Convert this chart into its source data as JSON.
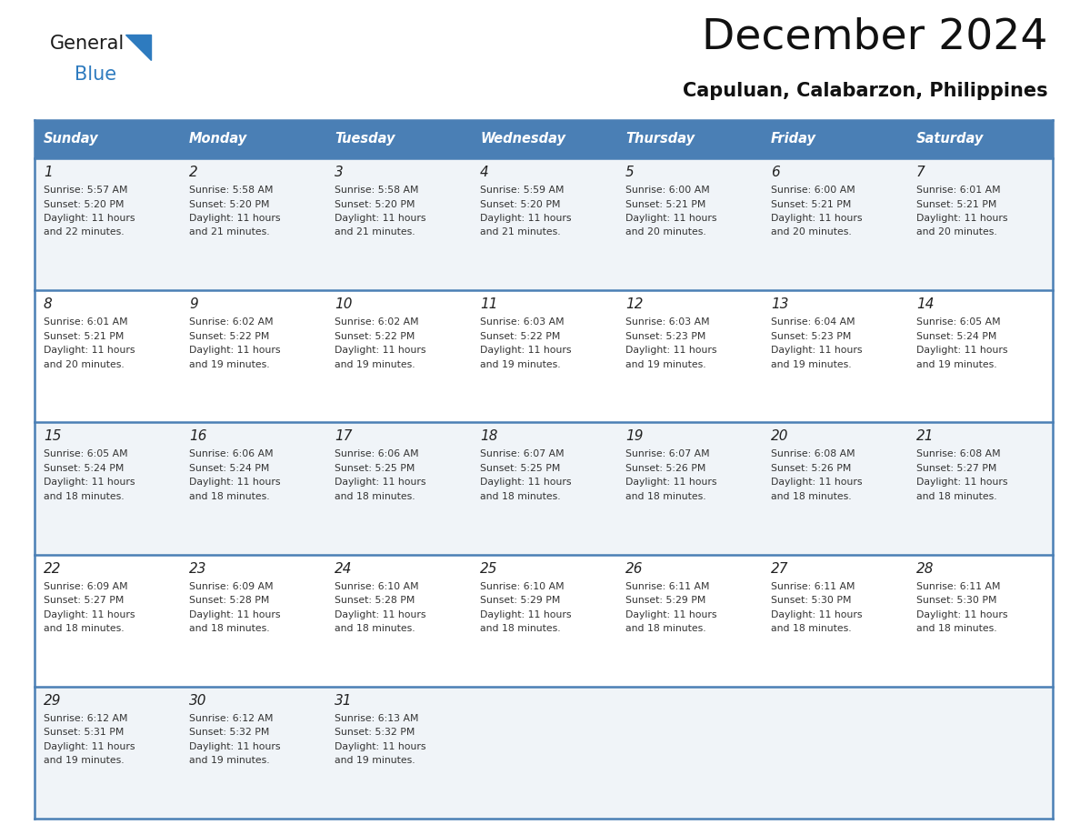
{
  "title": "December 2024",
  "subtitle": "Capuluan, Calabarzon, Philippines",
  "days_of_week": [
    "Sunday",
    "Monday",
    "Tuesday",
    "Wednesday",
    "Thursday",
    "Friday",
    "Saturday"
  ],
  "header_bg": "#4a7fb5",
  "header_text": "#ffffff",
  "row_bg_light": "#f0f4f8",
  "row_bg_white": "#ffffff",
  "border_color": "#4a7fb5",
  "day_number_color": "#222222",
  "cell_text_color": "#333333",
  "logo_general_color": "#1a1a1a",
  "logo_blue_color": "#2e7bbf",
  "logo_triangle_color": "#2e7bbf",
  "calendar_data": [
    [
      {
        "day": "1",
        "sunrise": "5:57 AM",
        "sunset": "5:20 PM",
        "daylight_h": "11 hours",
        "daylight_m": "and 22 minutes."
      },
      {
        "day": "2",
        "sunrise": "5:58 AM",
        "sunset": "5:20 PM",
        "daylight_h": "11 hours",
        "daylight_m": "and 21 minutes."
      },
      {
        "day": "3",
        "sunrise": "5:58 AM",
        "sunset": "5:20 PM",
        "daylight_h": "11 hours",
        "daylight_m": "and 21 minutes."
      },
      {
        "day": "4",
        "sunrise": "5:59 AM",
        "sunset": "5:20 PM",
        "daylight_h": "11 hours",
        "daylight_m": "and 21 minutes."
      },
      {
        "day": "5",
        "sunrise": "6:00 AM",
        "sunset": "5:21 PM",
        "daylight_h": "11 hours",
        "daylight_m": "and 20 minutes."
      },
      {
        "day": "6",
        "sunrise": "6:00 AM",
        "sunset": "5:21 PM",
        "daylight_h": "11 hours",
        "daylight_m": "and 20 minutes."
      },
      {
        "day": "7",
        "sunrise": "6:01 AM",
        "sunset": "5:21 PM",
        "daylight_h": "11 hours",
        "daylight_m": "and 20 minutes."
      }
    ],
    [
      {
        "day": "8",
        "sunrise": "6:01 AM",
        "sunset": "5:21 PM",
        "daylight_h": "11 hours",
        "daylight_m": "and 20 minutes."
      },
      {
        "day": "9",
        "sunrise": "6:02 AM",
        "sunset": "5:22 PM",
        "daylight_h": "11 hours",
        "daylight_m": "and 19 minutes."
      },
      {
        "day": "10",
        "sunrise": "6:02 AM",
        "sunset": "5:22 PM",
        "daylight_h": "11 hours",
        "daylight_m": "and 19 minutes."
      },
      {
        "day": "11",
        "sunrise": "6:03 AM",
        "sunset": "5:22 PM",
        "daylight_h": "11 hours",
        "daylight_m": "and 19 minutes."
      },
      {
        "day": "12",
        "sunrise": "6:03 AM",
        "sunset": "5:23 PM",
        "daylight_h": "11 hours",
        "daylight_m": "and 19 minutes."
      },
      {
        "day": "13",
        "sunrise": "6:04 AM",
        "sunset": "5:23 PM",
        "daylight_h": "11 hours",
        "daylight_m": "and 19 minutes."
      },
      {
        "day": "14",
        "sunrise": "6:05 AM",
        "sunset": "5:24 PM",
        "daylight_h": "11 hours",
        "daylight_m": "and 19 minutes."
      }
    ],
    [
      {
        "day": "15",
        "sunrise": "6:05 AM",
        "sunset": "5:24 PM",
        "daylight_h": "11 hours",
        "daylight_m": "and 18 minutes."
      },
      {
        "day": "16",
        "sunrise": "6:06 AM",
        "sunset": "5:24 PM",
        "daylight_h": "11 hours",
        "daylight_m": "and 18 minutes."
      },
      {
        "day": "17",
        "sunrise": "6:06 AM",
        "sunset": "5:25 PM",
        "daylight_h": "11 hours",
        "daylight_m": "and 18 minutes."
      },
      {
        "day": "18",
        "sunrise": "6:07 AM",
        "sunset": "5:25 PM",
        "daylight_h": "11 hours",
        "daylight_m": "and 18 minutes."
      },
      {
        "day": "19",
        "sunrise": "6:07 AM",
        "sunset": "5:26 PM",
        "daylight_h": "11 hours",
        "daylight_m": "and 18 minutes."
      },
      {
        "day": "20",
        "sunrise": "6:08 AM",
        "sunset": "5:26 PM",
        "daylight_h": "11 hours",
        "daylight_m": "and 18 minutes."
      },
      {
        "day": "21",
        "sunrise": "6:08 AM",
        "sunset": "5:27 PM",
        "daylight_h": "11 hours",
        "daylight_m": "and 18 minutes."
      }
    ],
    [
      {
        "day": "22",
        "sunrise": "6:09 AM",
        "sunset": "5:27 PM",
        "daylight_h": "11 hours",
        "daylight_m": "and 18 minutes."
      },
      {
        "day": "23",
        "sunrise": "6:09 AM",
        "sunset": "5:28 PM",
        "daylight_h": "11 hours",
        "daylight_m": "and 18 minutes."
      },
      {
        "day": "24",
        "sunrise": "6:10 AM",
        "sunset": "5:28 PM",
        "daylight_h": "11 hours",
        "daylight_m": "and 18 minutes."
      },
      {
        "day": "25",
        "sunrise": "6:10 AM",
        "sunset": "5:29 PM",
        "daylight_h": "11 hours",
        "daylight_m": "and 18 minutes."
      },
      {
        "day": "26",
        "sunrise": "6:11 AM",
        "sunset": "5:29 PM",
        "daylight_h": "11 hours",
        "daylight_m": "and 18 minutes."
      },
      {
        "day": "27",
        "sunrise": "6:11 AM",
        "sunset": "5:30 PM",
        "daylight_h": "11 hours",
        "daylight_m": "and 18 minutes."
      },
      {
        "day": "28",
        "sunrise": "6:11 AM",
        "sunset": "5:30 PM",
        "daylight_h": "11 hours",
        "daylight_m": "and 18 minutes."
      }
    ],
    [
      {
        "day": "29",
        "sunrise": "6:12 AM",
        "sunset": "5:31 PM",
        "daylight_h": "11 hours",
        "daylight_m": "and 19 minutes."
      },
      {
        "day": "30",
        "sunrise": "6:12 AM",
        "sunset": "5:32 PM",
        "daylight_h": "11 hours",
        "daylight_m": "and 19 minutes."
      },
      {
        "day": "31",
        "sunrise": "6:13 AM",
        "sunset": "5:32 PM",
        "daylight_h": "11 hours",
        "daylight_m": "and 19 minutes."
      },
      null,
      null,
      null,
      null
    ]
  ],
  "figsize": [
    11.88,
    9.18
  ],
  "dpi": 100
}
